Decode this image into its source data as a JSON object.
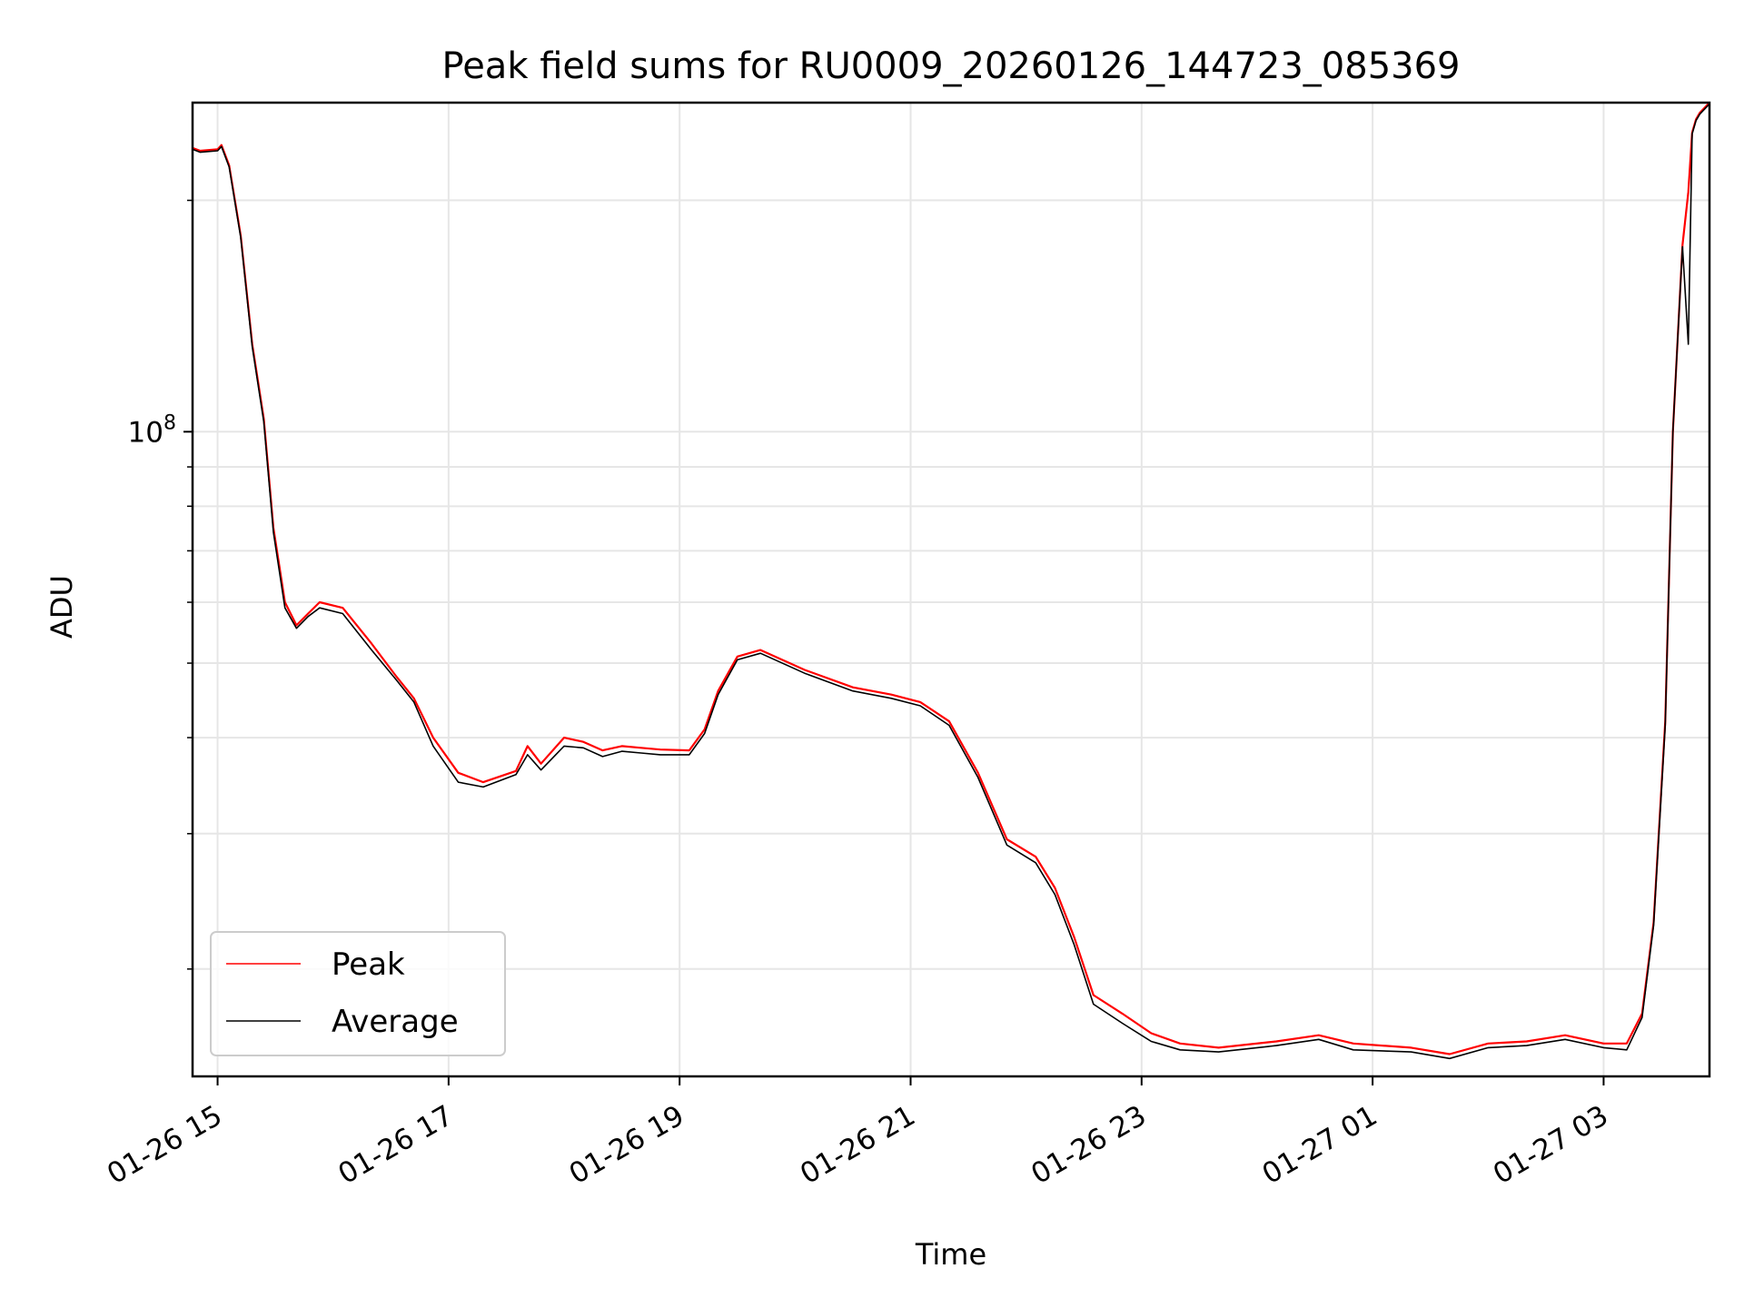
{
  "chart_data": {
    "type": "line",
    "title": "Peak field sums for RU0009_20260126_144723_085369",
    "xlabel": "Time",
    "ylabel": "ADU",
    "x_scale": "time",
    "y_scale": "log",
    "xlim": [
      "2026-01-26 14:47",
      "2026-01-27 03:55"
    ],
    "ylim": [
      14500000,
      268000000
    ],
    "x_ticks": [
      {
        "value": "2026-01-26 15:00",
        "label": "01-26 15"
      },
      {
        "value": "2026-01-26 17:00",
        "label": "01-26 17"
      },
      {
        "value": "2026-01-26 19:00",
        "label": "01-26 19"
      },
      {
        "value": "2026-01-26 21:00",
        "label": "01-26 21"
      },
      {
        "value": "2026-01-26 23:00",
        "label": "01-26 23"
      },
      {
        "value": "2026-01-27 01:00",
        "label": "01-27 01"
      },
      {
        "value": "2026-01-27 03:00",
        "label": "01-27 03"
      }
    ],
    "y_major_ticks": [
      {
        "value": 100000000,
        "base": "10",
        "exponent": "8"
      }
    ],
    "y_minor_ticks": [
      20000000,
      30000000,
      40000000,
      50000000,
      60000000,
      70000000,
      80000000,
      90000000,
      200000000
    ],
    "grid": true,
    "legend_position": "lower-left",
    "series": [
      {
        "name": "Peak",
        "color": "#ff0000",
        "x": [
          "2026-01-26 14:47",
          "2026-01-26 14:51",
          "2026-01-26 15:00",
          "2026-01-26 15:02",
          "2026-01-26 15:06",
          "2026-01-26 15:12",
          "2026-01-26 15:18",
          "2026-01-26 15:24",
          "2026-01-26 15:29",
          "2026-01-26 15:35",
          "2026-01-26 15:41",
          "2026-01-26 15:47",
          "2026-01-26 15:53",
          "2026-01-26 16:05",
          "2026-01-26 16:20",
          "2026-01-26 16:33",
          "2026-01-26 16:42",
          "2026-01-26 16:52",
          "2026-01-26 17:05",
          "2026-01-26 17:18",
          "2026-01-26 17:35",
          "2026-01-26 17:41",
          "2026-01-26 17:48",
          "2026-01-26 18:00",
          "2026-01-26 18:10",
          "2026-01-26 18:20",
          "2026-01-26 18:30",
          "2026-01-26 18:40",
          "2026-01-26 18:50",
          "2026-01-26 19:05",
          "2026-01-26 19:13",
          "2026-01-26 19:20",
          "2026-01-26 19:30",
          "2026-01-26 19:42",
          "2026-01-26 20:05",
          "2026-01-26 20:30",
          "2026-01-26 20:50",
          "2026-01-26 21:05",
          "2026-01-26 21:20",
          "2026-01-26 21:35",
          "2026-01-26 21:50",
          "2026-01-26 22:05",
          "2026-01-26 22:15",
          "2026-01-26 22:25",
          "2026-01-26 22:35",
          "2026-01-26 22:50",
          "2026-01-26 23:05",
          "2026-01-26 23:20",
          "2026-01-26 23:40",
          "2026-01-27 00:10",
          "2026-01-27 00:32",
          "2026-01-27 00:50",
          "2026-01-27 01:20",
          "2026-01-27 01:40",
          "2026-01-27 02:00",
          "2026-01-27 02:20",
          "2026-01-27 02:40",
          "2026-01-27 03:00",
          "2026-01-27 03:12",
          "2026-01-27 03:20",
          "2026-01-27 03:26",
          "2026-01-27 03:32",
          "2026-01-27 03:36",
          "2026-01-27 03:41",
          "2026-01-27 03:44",
          "2026-01-27 03:46",
          "2026-01-27 03:48",
          "2026-01-27 03:50",
          "2026-01-27 03:55"
        ],
        "values": [
          234000000,
          232000000,
          233000000,
          236000000,
          222000000,
          180000000,
          130000000,
          104000000,
          75000000,
          60000000,
          56000000,
          58000000,
          60000000,
          59000000,
          53000000,
          48000000,
          45000000,
          40000000,
          36000000,
          35000000,
          36200000,
          39000000,
          37000000,
          40000000,
          39500000,
          38500000,
          39000000,
          38800000,
          38600000,
          38500000,
          41000000,
          46000000,
          51000000,
          52000000,
          49000000,
          46500000,
          45500000,
          44500000,
          42000000,
          36000000,
          29500000,
          28000000,
          25500000,
          22000000,
          18500000,
          17500000,
          16500000,
          16000000,
          15800000,
          16100000,
          16400000,
          16000000,
          15800000,
          15500000,
          16000000,
          16100000,
          16400000,
          16000000,
          16000000,
          17500000,
          23000000,
          42000000,
          100000000,
          175000000,
          205000000,
          245000000,
          255000000,
          260000000,
          268000000
        ]
      },
      {
        "name": "Average",
        "color": "#000000",
        "x": [
          "2026-01-26 14:47",
          "2026-01-26 14:51",
          "2026-01-26 15:00",
          "2026-01-26 15:02",
          "2026-01-26 15:06",
          "2026-01-26 15:12",
          "2026-01-26 15:18",
          "2026-01-26 15:24",
          "2026-01-26 15:29",
          "2026-01-26 15:35",
          "2026-01-26 15:41",
          "2026-01-26 15:47",
          "2026-01-26 15:53",
          "2026-01-26 16:05",
          "2026-01-26 16:20",
          "2026-01-26 16:33",
          "2026-01-26 16:42",
          "2026-01-26 16:52",
          "2026-01-26 17:05",
          "2026-01-26 17:18",
          "2026-01-26 17:35",
          "2026-01-26 17:41",
          "2026-01-26 17:48",
          "2026-01-26 18:00",
          "2026-01-26 18:10",
          "2026-01-26 18:20",
          "2026-01-26 18:30",
          "2026-01-26 18:40",
          "2026-01-26 18:50",
          "2026-01-26 19:05",
          "2026-01-26 19:13",
          "2026-01-26 19:20",
          "2026-01-26 19:30",
          "2026-01-26 19:42",
          "2026-01-26 20:05",
          "2026-01-26 20:30",
          "2026-01-26 20:50",
          "2026-01-26 21:05",
          "2026-01-26 21:20",
          "2026-01-26 21:35",
          "2026-01-26 21:50",
          "2026-01-26 22:05",
          "2026-01-26 22:15",
          "2026-01-26 22:25",
          "2026-01-26 22:35",
          "2026-01-26 22:50",
          "2026-01-26 23:05",
          "2026-01-26 23:20",
          "2026-01-26 23:40",
          "2026-01-27 00:10",
          "2026-01-27 00:32",
          "2026-01-27 00:50",
          "2026-01-27 01:20",
          "2026-01-27 01:40",
          "2026-01-27 02:00",
          "2026-01-27 02:20",
          "2026-01-27 02:40",
          "2026-01-27 03:00",
          "2026-01-27 03:12",
          "2026-01-27 03:20",
          "2026-01-27 03:26",
          "2026-01-27 03:32",
          "2026-01-27 03:36",
          "2026-01-27 03:41",
          "2026-01-27 03:44",
          "2026-01-27 03:46",
          "2026-01-27 03:48",
          "2026-01-27 03:50",
          "2026-01-27 03:55"
        ],
        "values": [
          233000000,
          231000000,
          232000000,
          235000000,
          221000000,
          179000000,
          129000000,
          103000000,
          74000000,
          59000000,
          55500000,
          57500000,
          59000000,
          58000000,
          52000000,
          47500000,
          44500000,
          39000000,
          35000000,
          34500000,
          35800000,
          38000000,
          36300000,
          39000000,
          38800000,
          37800000,
          38400000,
          38200000,
          38000000,
          38000000,
          40500000,
          45500000,
          50500000,
          51500000,
          48500000,
          46000000,
          45000000,
          44000000,
          41500000,
          35500000,
          29000000,
          27500000,
          25000000,
          21500000,
          18000000,
          17000000,
          16100000,
          15700000,
          15600000,
          15900000,
          16200000,
          15700000,
          15600000,
          15300000,
          15800000,
          15900000,
          16200000,
          15800000,
          15700000,
          17300000,
          22800000,
          41500000,
          100000000,
          174000000,
          130000000,
          244000000,
          254000000,
          259000000,
          267000000
        ]
      }
    ]
  }
}
